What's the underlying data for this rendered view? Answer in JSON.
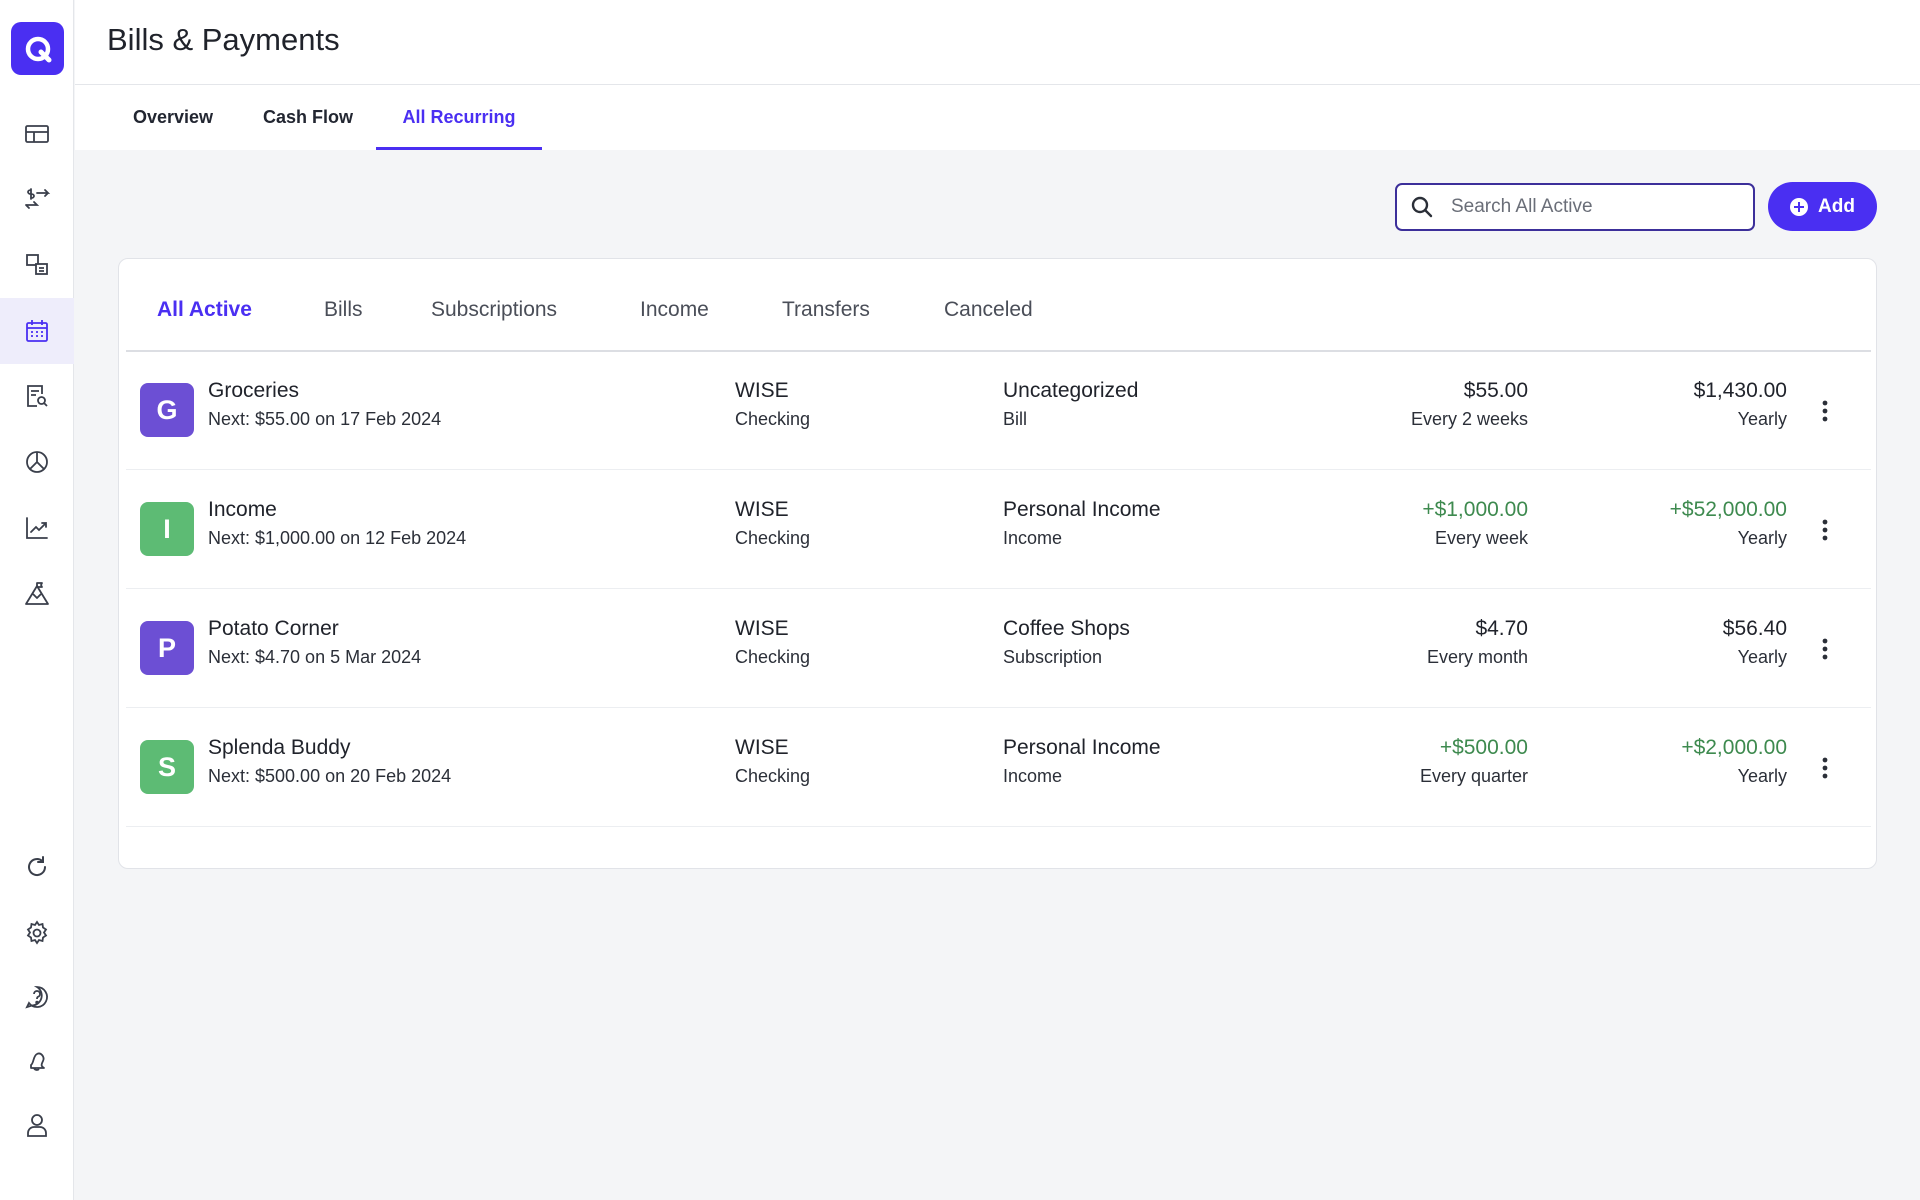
{
  "page": {
    "title": "Bills & Payments"
  },
  "sidebar": {
    "icons": [
      "logo-icon",
      "dashboard-icon",
      "transactions-icon",
      "accounts-icon",
      "calendar-icon",
      "reports-icon",
      "budget-icon",
      "investments-icon",
      "goals-icon",
      "refresh-icon",
      "settings-icon",
      "help-icon",
      "notifications-icon",
      "profile-icon"
    ],
    "active": "calendar-icon"
  },
  "top_tabs": [
    {
      "label": "Overview"
    },
    {
      "label": "Cash Flow"
    },
    {
      "label": "All Recurring",
      "active": true
    }
  ],
  "search": {
    "placeholder": "Search All Active",
    "value": ""
  },
  "add_button": {
    "label": "Add"
  },
  "sub_tabs": [
    {
      "label": "All Active",
      "active": true
    },
    {
      "label": "Bills"
    },
    {
      "label": "Subscriptions"
    },
    {
      "label": "Income"
    },
    {
      "label": "Transfers"
    },
    {
      "label": "Canceled"
    }
  ],
  "rows": [
    {
      "initial": "G",
      "name": "Groceries",
      "next": "Next: $55.00 on 17 Feb 2024",
      "account": "WISE",
      "account_type": "Checking",
      "category": "Uncategorized",
      "kind": "Bill",
      "amount": "$55.00",
      "frequency": "Every 2 weeks",
      "yearly_amount": "$1,430.00",
      "yearly_label": "Yearly",
      "is_income": false
    },
    {
      "initial": "I",
      "name": "Income",
      "next": "Next: $1,000.00 on 12 Feb 2024",
      "account": "WISE",
      "account_type": "Checking",
      "category": "Personal Income",
      "kind": "Income",
      "amount": "+$1,000.00",
      "frequency": "Every week",
      "yearly_amount": "+$52,000.00",
      "yearly_label": "Yearly",
      "is_income": true
    },
    {
      "initial": "P",
      "name": "Potato Corner",
      "next": "Next: $4.70 on 5 Mar 2024",
      "account": "WISE",
      "account_type": "Checking",
      "category": "Coffee Shops",
      "kind": "Subscription",
      "amount": "$4.70",
      "frequency": "Every month",
      "yearly_amount": "$56.40",
      "yearly_label": "Yearly",
      "is_income": false
    },
    {
      "initial": "S",
      "name": "Splenda Buddy",
      "next": "Next: $500.00 on 20 Feb 2024",
      "account": "WISE",
      "account_type": "Checking",
      "category": "Personal Income",
      "kind": "Income",
      "amount": "+$500.00",
      "frequency": "Every quarter",
      "yearly_amount": "+$2,000.00",
      "yearly_label": "Yearly",
      "is_income": true
    }
  ],
  "colors": {
    "accent": "#4a2ff2",
    "income_text": "#3e8a4f",
    "avatar_expense": "#6c4fd4",
    "avatar_income": "#5dbb74"
  }
}
